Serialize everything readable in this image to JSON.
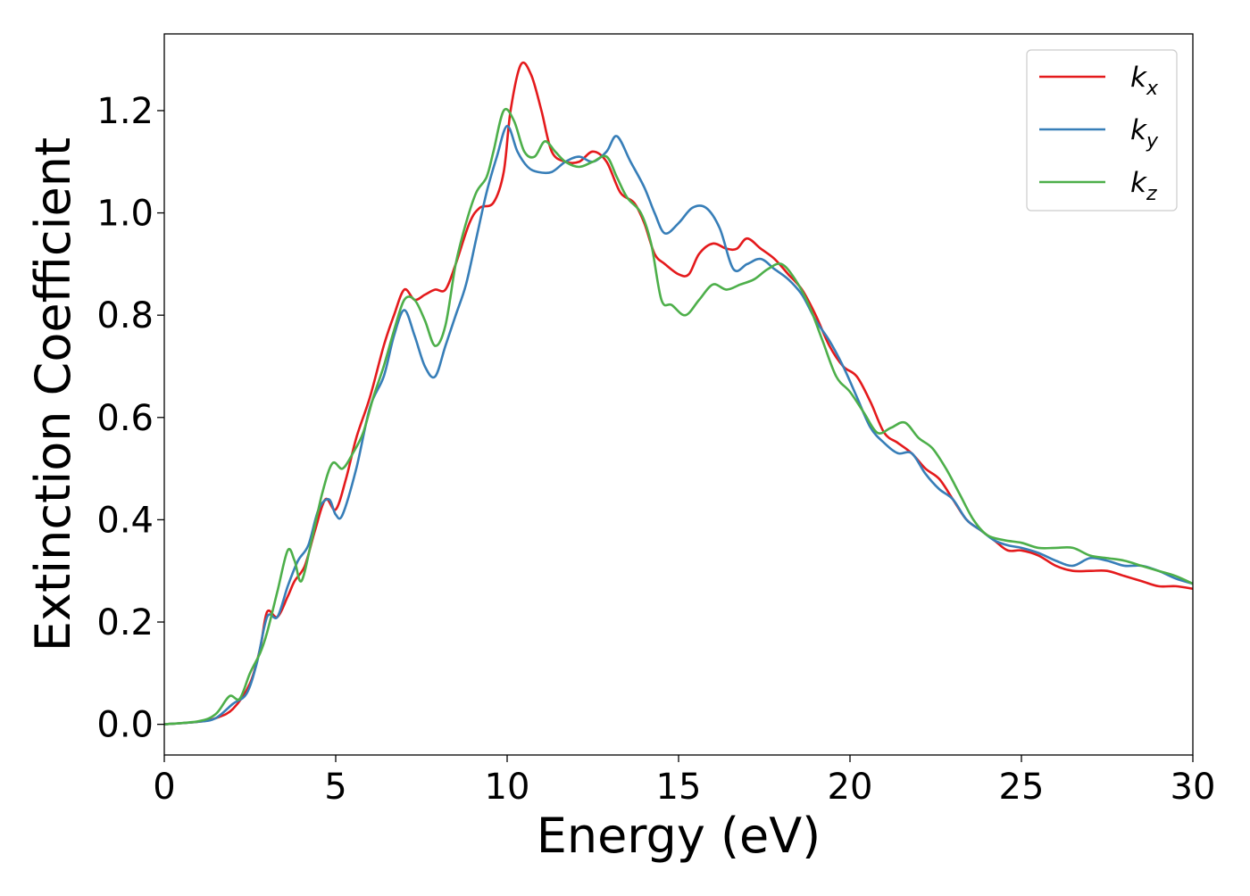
{
  "chart_data": {
    "type": "line",
    "title": "",
    "xlabel": "Energy (eV)",
    "ylabel": "Extinction Coefficient",
    "xlim": [
      0,
      30
    ],
    "ylim": [
      -0.06,
      1.35
    ],
    "xticks": [
      0,
      5,
      10,
      15,
      20,
      25,
      30
    ],
    "yticks": [
      0.0,
      0.2,
      0.4,
      0.6,
      0.8,
      1.0,
      1.2
    ],
    "xtick_labels": [
      "0",
      "5",
      "10",
      "15",
      "20",
      "25",
      "30"
    ],
    "ytick_labels": [
      "0.0",
      "0.2",
      "0.4",
      "0.6",
      "0.8",
      "1.0",
      "1.2"
    ],
    "grid": false,
    "legend_position": "top-right",
    "series": [
      {
        "name": "k_x",
        "label_base": "k",
        "label_sub": "x",
        "color": "#e41a1c",
        "points": [
          [
            0,
            0.0
          ],
          [
            1,
            0.005
          ],
          [
            1.5,
            0.012
          ],
          [
            2,
            0.03
          ],
          [
            2.5,
            0.08
          ],
          [
            2.8,
            0.15
          ],
          [
            3.0,
            0.22
          ],
          [
            3.3,
            0.21
          ],
          [
            3.6,
            0.25
          ],
          [
            3.8,
            0.28
          ],
          [
            4.1,
            0.31
          ],
          [
            4.4,
            0.38
          ],
          [
            4.7,
            0.44
          ],
          [
            5.0,
            0.42
          ],
          [
            5.3,
            0.48
          ],
          [
            5.6,
            0.56
          ],
          [
            6.0,
            0.64
          ],
          [
            6.4,
            0.74
          ],
          [
            6.7,
            0.8
          ],
          [
            7.0,
            0.85
          ],
          [
            7.3,
            0.83
          ],
          [
            7.6,
            0.84
          ],
          [
            7.9,
            0.85
          ],
          [
            8.2,
            0.85
          ],
          [
            8.5,
            0.9
          ],
          [
            8.9,
            0.98
          ],
          [
            9.2,
            1.01
          ],
          [
            9.6,
            1.02
          ],
          [
            9.9,
            1.08
          ],
          [
            10.1,
            1.2
          ],
          [
            10.4,
            1.29
          ],
          [
            10.7,
            1.27
          ],
          [
            11.0,
            1.2
          ],
          [
            11.3,
            1.12
          ],
          [
            11.7,
            1.1
          ],
          [
            12.1,
            1.1
          ],
          [
            12.5,
            1.12
          ],
          [
            12.9,
            1.1
          ],
          [
            13.3,
            1.04
          ],
          [
            13.7,
            1.02
          ],
          [
            14.0,
            0.98
          ],
          [
            14.3,
            0.92
          ],
          [
            14.6,
            0.9
          ],
          [
            15.0,
            0.88
          ],
          [
            15.3,
            0.88
          ],
          [
            15.6,
            0.92
          ],
          [
            16.0,
            0.94
          ],
          [
            16.4,
            0.93
          ],
          [
            16.7,
            0.93
          ],
          [
            17.0,
            0.95
          ],
          [
            17.4,
            0.93
          ],
          [
            17.8,
            0.91
          ],
          [
            18.2,
            0.88
          ],
          [
            18.6,
            0.85
          ],
          [
            19.0,
            0.8
          ],
          [
            19.4,
            0.74
          ],
          [
            19.8,
            0.7
          ],
          [
            20.2,
            0.68
          ],
          [
            20.6,
            0.63
          ],
          [
            21.0,
            0.57
          ],
          [
            21.4,
            0.55
          ],
          [
            21.8,
            0.53
          ],
          [
            22.2,
            0.5
          ],
          [
            22.6,
            0.48
          ],
          [
            23.0,
            0.44
          ],
          [
            23.4,
            0.4
          ],
          [
            23.8,
            0.38
          ],
          [
            24.2,
            0.36
          ],
          [
            24.6,
            0.34
          ],
          [
            25.0,
            0.34
          ],
          [
            25.5,
            0.33
          ],
          [
            26.0,
            0.31
          ],
          [
            26.5,
            0.3
          ],
          [
            27.0,
            0.3
          ],
          [
            27.5,
            0.3
          ],
          [
            28.0,
            0.29
          ],
          [
            28.5,
            0.28
          ],
          [
            29.0,
            0.27
          ],
          [
            29.5,
            0.27
          ],
          [
            30.0,
            0.265
          ]
        ]
      },
      {
        "name": "k_y",
        "label_base": "k",
        "label_sub": "y",
        "color": "#377eb8",
        "points": [
          [
            0,
            0.0
          ],
          [
            1,
            0.005
          ],
          [
            1.5,
            0.012
          ],
          [
            2,
            0.04
          ],
          [
            2.4,
            0.06
          ],
          [
            2.7,
            0.12
          ],
          [
            3.0,
            0.21
          ],
          [
            3.3,
            0.21
          ],
          [
            3.6,
            0.27
          ],
          [
            3.9,
            0.32
          ],
          [
            4.2,
            0.35
          ],
          [
            4.5,
            0.42
          ],
          [
            4.8,
            0.44
          ],
          [
            5.0,
            0.41
          ],
          [
            5.2,
            0.41
          ],
          [
            5.6,
            0.5
          ],
          [
            6.0,
            0.62
          ],
          [
            6.4,
            0.68
          ],
          [
            6.7,
            0.76
          ],
          [
            7.0,
            0.81
          ],
          [
            7.3,
            0.76
          ],
          [
            7.6,
            0.7
          ],
          [
            7.9,
            0.68
          ],
          [
            8.2,
            0.74
          ],
          [
            8.5,
            0.8
          ],
          [
            8.8,
            0.86
          ],
          [
            9.1,
            0.95
          ],
          [
            9.4,
            1.04
          ],
          [
            9.7,
            1.11
          ],
          [
            10.0,
            1.17
          ],
          [
            10.3,
            1.12
          ],
          [
            10.6,
            1.09
          ],
          [
            10.9,
            1.08
          ],
          [
            11.3,
            1.08
          ],
          [
            11.7,
            1.1
          ],
          [
            12.1,
            1.11
          ],
          [
            12.5,
            1.1
          ],
          [
            12.9,
            1.12
          ],
          [
            13.2,
            1.15
          ],
          [
            13.6,
            1.1
          ],
          [
            14.0,
            1.05
          ],
          [
            14.3,
            1.0
          ],
          [
            14.6,
            0.96
          ],
          [
            15.0,
            0.98
          ],
          [
            15.4,
            1.01
          ],
          [
            15.8,
            1.01
          ],
          [
            16.2,
            0.97
          ],
          [
            16.6,
            0.89
          ],
          [
            17.0,
            0.9
          ],
          [
            17.4,
            0.91
          ],
          [
            17.8,
            0.89
          ],
          [
            18.2,
            0.87
          ],
          [
            18.6,
            0.84
          ],
          [
            19.0,
            0.79
          ],
          [
            19.4,
            0.75
          ],
          [
            19.8,
            0.7
          ],
          [
            20.2,
            0.64
          ],
          [
            20.6,
            0.58
          ],
          [
            21.0,
            0.55
          ],
          [
            21.4,
            0.53
          ],
          [
            21.8,
            0.53
          ],
          [
            22.2,
            0.49
          ],
          [
            22.6,
            0.46
          ],
          [
            23.0,
            0.44
          ],
          [
            23.4,
            0.4
          ],
          [
            23.8,
            0.38
          ],
          [
            24.2,
            0.36
          ],
          [
            24.6,
            0.35
          ],
          [
            25.0,
            0.345
          ],
          [
            25.5,
            0.335
          ],
          [
            26.0,
            0.32
          ],
          [
            26.5,
            0.31
          ],
          [
            27.0,
            0.325
          ],
          [
            27.5,
            0.32
          ],
          [
            28.0,
            0.31
          ],
          [
            28.5,
            0.31
          ],
          [
            29.0,
            0.3
          ],
          [
            29.5,
            0.285
          ],
          [
            30.0,
            0.275
          ]
        ]
      },
      {
        "name": "k_z",
        "label_base": "k",
        "label_sub": "z",
        "color": "#4daf4a",
        "points": [
          [
            0,
            0.0
          ],
          [
            1,
            0.006
          ],
          [
            1.5,
            0.02
          ],
          [
            1.9,
            0.055
          ],
          [
            2.2,
            0.05
          ],
          [
            2.5,
            0.1
          ],
          [
            2.8,
            0.14
          ],
          [
            3.0,
            0.18
          ],
          [
            3.3,
            0.26
          ],
          [
            3.6,
            0.34
          ],
          [
            3.8,
            0.32
          ],
          [
            4.0,
            0.28
          ],
          [
            4.3,
            0.36
          ],
          [
            4.6,
            0.45
          ],
          [
            4.9,
            0.51
          ],
          [
            5.2,
            0.5
          ],
          [
            5.5,
            0.53
          ],
          [
            5.8,
            0.57
          ],
          [
            6.1,
            0.64
          ],
          [
            6.4,
            0.7
          ],
          [
            6.7,
            0.77
          ],
          [
            7.0,
            0.83
          ],
          [
            7.3,
            0.83
          ],
          [
            7.6,
            0.79
          ],
          [
            7.9,
            0.74
          ],
          [
            8.2,
            0.78
          ],
          [
            8.5,
            0.9
          ],
          [
            8.8,
            0.98
          ],
          [
            9.1,
            1.04
          ],
          [
            9.4,
            1.07
          ],
          [
            9.6,
            1.12
          ],
          [
            9.9,
            1.2
          ],
          [
            10.2,
            1.18
          ],
          [
            10.5,
            1.12
          ],
          [
            10.8,
            1.11
          ],
          [
            11.1,
            1.14
          ],
          [
            11.4,
            1.12
          ],
          [
            11.7,
            1.1
          ],
          [
            12.1,
            1.09
          ],
          [
            12.5,
            1.1
          ],
          [
            12.9,
            1.11
          ],
          [
            13.2,
            1.07
          ],
          [
            13.5,
            1.03
          ],
          [
            13.9,
            1.0
          ],
          [
            14.2,
            0.94
          ],
          [
            14.5,
            0.83
          ],
          [
            14.8,
            0.82
          ],
          [
            15.2,
            0.8
          ],
          [
            15.6,
            0.83
          ],
          [
            16.0,
            0.86
          ],
          [
            16.4,
            0.85
          ],
          [
            16.8,
            0.86
          ],
          [
            17.2,
            0.87
          ],
          [
            17.6,
            0.89
          ],
          [
            18.0,
            0.9
          ],
          [
            18.4,
            0.87
          ],
          [
            18.8,
            0.82
          ],
          [
            19.2,
            0.75
          ],
          [
            19.6,
            0.68
          ],
          [
            20.0,
            0.65
          ],
          [
            20.4,
            0.61
          ],
          [
            20.8,
            0.57
          ],
          [
            21.2,
            0.58
          ],
          [
            21.6,
            0.59
          ],
          [
            22.0,
            0.56
          ],
          [
            22.4,
            0.54
          ],
          [
            22.8,
            0.5
          ],
          [
            23.2,
            0.45
          ],
          [
            23.6,
            0.4
          ],
          [
            24.0,
            0.37
          ],
          [
            24.5,
            0.36
          ],
          [
            25.0,
            0.355
          ],
          [
            25.5,
            0.345
          ],
          [
            26.0,
            0.345
          ],
          [
            26.5,
            0.345
          ],
          [
            27.0,
            0.33
          ],
          [
            27.5,
            0.325
          ],
          [
            28.0,
            0.32
          ],
          [
            28.5,
            0.31
          ],
          [
            29.0,
            0.3
          ],
          [
            29.5,
            0.29
          ],
          [
            30.0,
            0.275
          ]
        ]
      }
    ]
  }
}
